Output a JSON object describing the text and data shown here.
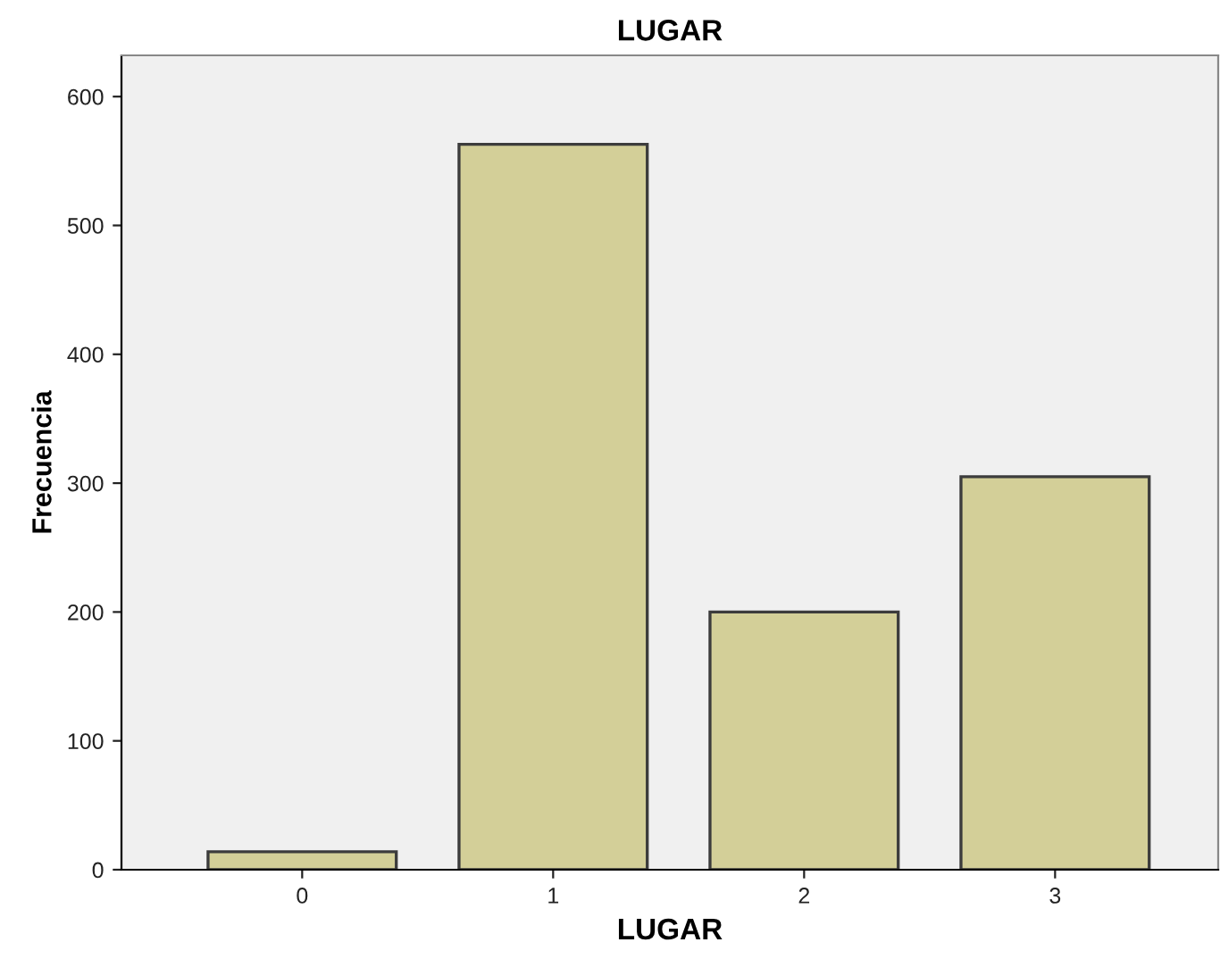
{
  "chart_data": {
    "type": "bar",
    "title": "LUGAR",
    "xlabel": "LUGAR",
    "ylabel": "Frecuencia",
    "categories": [
      "0",
      "1",
      "2",
      "3"
    ],
    "values": [
      14,
      563,
      200,
      305
    ],
    "color": "#d3cf98",
    "ylim": [
      0,
      632
    ],
    "yticks": [
      0,
      100,
      200,
      300,
      400,
      500,
      600
    ],
    "grid": false
  }
}
